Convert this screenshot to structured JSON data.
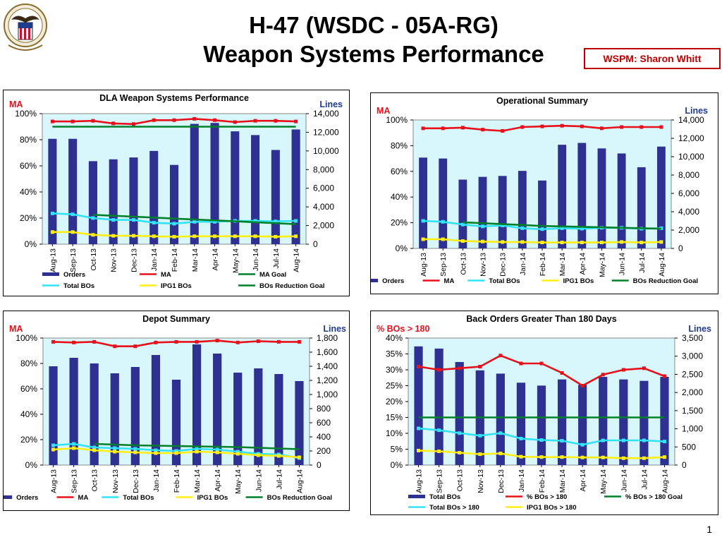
{
  "header": {
    "line1": "H-47 (WSDC - 05A-RG)",
    "line2": "Weapon Systems Performance",
    "wspm": "WSPM:  Sharon Whitt"
  },
  "page_number": "1",
  "colors": {
    "orders": "#2e3192",
    "ma": "#e8101a",
    "total_bos": "#31e3f5",
    "ipg1_bos": "#ffee11",
    "goal": "#00802b",
    "plot_bg": "#d8f7fc"
  },
  "chart_data": [
    {
      "type": "bar",
      "title": "DLA Weapon Systems Performance",
      "left_axis_label": "MA",
      "right_axis_label": "Lines",
      "categories": [
        "Aug-13",
        "Sep-13",
        "Oct-13",
        "Nov-13",
        "Dec-13",
        "Jan-14",
        "Feb-14",
        "Mar-14",
        "Apr-14",
        "May-14",
        "Jun-14",
        "Jul-14",
        "Aug-14"
      ],
      "left_ylim": [
        0,
        100
      ],
      "left_ticks": [
        "0%",
        "20%",
        "40%",
        "60%",
        "80%",
        "100%"
      ],
      "right_ylim": [
        0,
        14000
      ],
      "right_ticks": [
        "0",
        "2,000",
        "4,000",
        "6,000",
        "8,000",
        "10,000",
        "12,000",
        "14,000"
      ],
      "legend": [
        {
          "name": "Orders",
          "kind": "bar",
          "color_key": "orders"
        },
        {
          "name": "MA",
          "kind": "line",
          "color_key": "ma"
        },
        {
          "name": "MA Goal",
          "kind": "line",
          "color_key": "goal"
        },
        {
          "name": "Total BOs",
          "kind": "line",
          "color_key": "total_bos"
        },
        {
          "name": "IPG1 BOs",
          "kind": "line",
          "color_key": "ipg1_bos"
        },
        {
          "name": "BOs Reduction Goal",
          "kind": "line",
          "color_key": "goal"
        }
      ],
      "legend_layout": "grid3",
      "series": [
        {
          "name": "Orders",
          "kind": "bar",
          "axis": "right",
          "color_key": "orders",
          "values": [
            11300,
            11300,
            8900,
            9100,
            9300,
            10000,
            8500,
            12900,
            13000,
            12100,
            11700,
            10100,
            12300
          ]
        },
        {
          "name": "MA",
          "kind": "line",
          "axis": "left",
          "color_key": "ma",
          "marker": true,
          "values": [
            94,
            94,
            94.5,
            92.5,
            92,
            95,
            95,
            96,
            95,
            93.5,
            94.5,
            94.5,
            94
          ]
        },
        {
          "name": "MA Goal",
          "kind": "line",
          "axis": "left",
          "color_key": "goal",
          "marker": false,
          "values": [
            90,
            90,
            90,
            90,
            90,
            90,
            90,
            90,
            90,
            90,
            90,
            90,
            90
          ]
        },
        {
          "name": "Total BOs",
          "kind": "line",
          "axis": "right",
          "color_key": "total_bos",
          "marker": true,
          "values": [
            3300,
            3200,
            2800,
            2600,
            2600,
            2300,
            2200,
            2400,
            2400,
            2500,
            2500,
            2450,
            2500
          ]
        },
        {
          "name": "IPG1 BOs",
          "kind": "line",
          "axis": "right",
          "color_key": "ipg1_bos",
          "marker": true,
          "values": [
            1300,
            1300,
            1000,
            900,
            900,
            850,
            800,
            850,
            850,
            850,
            850,
            800,
            850
          ]
        },
        {
          "name": "BOs Reduction Goal",
          "kind": "line",
          "axis": "right",
          "color_key": "goal",
          "marker": false,
          "start": 2,
          "values": [
            null,
            null,
            3150,
            3050,
            2950,
            2850,
            2750,
            2650,
            2550,
            2450,
            2350,
            2250,
            2150
          ]
        }
      ]
    },
    {
      "type": "bar",
      "title": "Operational Summary",
      "left_axis_label": "MA",
      "right_axis_label": "Lines",
      "categories": [
        "Aug-13",
        "Sep-13",
        "Oct-13",
        "Nov-13",
        "Dec-13",
        "Jan-14",
        "Feb-14",
        "Mar-14",
        "Apr-14",
        "May-14",
        "Jun-14",
        "Jul-14",
        "Aug-14"
      ],
      "left_ylim": [
        0,
        100
      ],
      "left_ticks": [
        "0%",
        "20%",
        "40%",
        "60%",
        "80%",
        "100%"
      ],
      "right_ylim": [
        0,
        14000
      ],
      "right_ticks": [
        "0",
        "2,000",
        "4,000",
        "6,000",
        "8,000",
        "10,000",
        "12,000",
        "14,000"
      ],
      "legend": [
        {
          "name": "Orders",
          "kind": "bar",
          "color_key": "orders"
        },
        {
          "name": "MA",
          "kind": "line",
          "color_key": "ma"
        },
        {
          "name": "Total BOs",
          "kind": "line",
          "color_key": "total_bos"
        },
        {
          "name": "IPG1 BOs",
          "kind": "line",
          "color_key": "ipg1_bos"
        },
        {
          "name": "BOs Reduction Goal",
          "kind": "line",
          "color_key": "goal"
        }
      ],
      "legend_layout": "row",
      "series": [
        {
          "name": "Orders",
          "kind": "bar",
          "axis": "right",
          "color_key": "orders",
          "values": [
            9900,
            9800,
            7500,
            7800,
            7900,
            8450,
            7400,
            11300,
            11500,
            10900,
            10350,
            8850,
            11100
          ]
        },
        {
          "name": "MA",
          "kind": "line",
          "axis": "left",
          "color_key": "ma",
          "marker": true,
          "values": [
            93.5,
            93.5,
            94,
            92.5,
            91.5,
            94.5,
            95,
            95.5,
            95,
            93.5,
            94.5,
            94.5,
            94.5
          ]
        },
        {
          "name": "Total BOs",
          "kind": "line",
          "axis": "right",
          "color_key": "total_bos",
          "marker": true,
          "values": [
            3000,
            2900,
            2600,
            2400,
            2500,
            2200,
            2100,
            2200,
            2150,
            2250,
            2250,
            2150,
            2200
          ]
        },
        {
          "name": "IPG1 BOs",
          "kind": "line",
          "axis": "right",
          "color_key": "ipg1_bos",
          "marker": true,
          "values": [
            1000,
            1000,
            800,
            750,
            700,
            700,
            650,
            650,
            650,
            650,
            700,
            650,
            700
          ]
        },
        {
          "name": "BOs Reduction Goal",
          "kind": "line",
          "axis": "right",
          "color_key": "goal",
          "marker": false,
          "start": 2,
          "values": [
            null,
            null,
            2850,
            2750,
            2650,
            2550,
            2450,
            2400,
            2350,
            2300,
            2250,
            2200,
            2150
          ]
        }
      ]
    },
    {
      "type": "bar",
      "title": "Depot Summary",
      "left_axis_label": "MA",
      "right_axis_label": "Lines",
      "categories": [
        "Aug-13",
        "Sep-13",
        "Oct-13",
        "Nov-13",
        "Dec-13",
        "Jan-14",
        "Feb-14",
        "Mar-14",
        "Apr-14",
        "May-14",
        "Jun-14",
        "Jul-14",
        "Aug-14"
      ],
      "left_ylim": [
        0,
        100
      ],
      "left_ticks": [
        "0%",
        "20%",
        "40%",
        "60%",
        "80%",
        "100%"
      ],
      "right_ylim": [
        0,
        1800
      ],
      "right_ticks": [
        "0",
        "200",
        "400",
        "600",
        "800",
        "1,000",
        "1,200",
        "1,400",
        "1,600",
        "1,800"
      ],
      "legend": [
        {
          "name": "Orders",
          "kind": "bar",
          "color_key": "orders"
        },
        {
          "name": "MA",
          "kind": "line",
          "color_key": "ma"
        },
        {
          "name": "Total BOs",
          "kind": "line",
          "color_key": "total_bos"
        },
        {
          "name": "IPG1 BOs",
          "kind": "line",
          "color_key": "ipg1_bos"
        },
        {
          "name": "BOs Reduction Goal",
          "kind": "line",
          "color_key": "goal"
        }
      ],
      "legend_layout": "row",
      "series": [
        {
          "name": "Orders",
          "kind": "bar",
          "axis": "right",
          "color_key": "orders",
          "values": [
            1400,
            1520,
            1440,
            1300,
            1390,
            1560,
            1210,
            1710,
            1580,
            1310,
            1370,
            1290,
            1190
          ]
        },
        {
          "name": "MA",
          "kind": "line",
          "axis": "left",
          "color_key": "ma",
          "marker": true,
          "values": [
            97,
            96.5,
            97,
            93.5,
            93.5,
            96.5,
            97,
            97,
            98,
            96.5,
            97.5,
            97,
            97
          ]
        },
        {
          "name": "Total BOs",
          "kind": "line",
          "axis": "right",
          "color_key": "total_bos",
          "marker": true,
          "values": [
            280,
            300,
            250,
            240,
            230,
            210,
            200,
            230,
            220,
            190,
            160,
            150,
            100
          ]
        },
        {
          "name": "IPG1 BOs",
          "kind": "line",
          "axis": "right",
          "color_key": "ipg1_bos",
          "marker": true,
          "values": [
            220,
            240,
            210,
            190,
            180,
            170,
            170,
            190,
            180,
            160,
            140,
            130,
            110
          ]
        },
        {
          "name": "BOs Reduction Goal",
          "kind": "line",
          "axis": "right",
          "color_key": "goal",
          "marker": false,
          "start": 2,
          "values": [
            null,
            null,
            300,
            290,
            280,
            275,
            270,
            265,
            260,
            255,
            245,
            235,
            225
          ]
        }
      ]
    },
    {
      "type": "bar",
      "title": "Back Orders Greater Than 180 Days",
      "left_axis_label": "% BOs > 180",
      "right_axis_label": "Lines",
      "categories": [
        "Aug-13",
        "Sep-13",
        "Oct-13",
        "Nov-13",
        "Dec-13",
        "Jan-14",
        "Feb-14",
        "Mar-14",
        "Apr-14",
        "May-14",
        "Jun-14",
        "Jul-14",
        "Aug-14"
      ],
      "left_ylim": [
        0,
        40
      ],
      "left_ticks": [
        "0%",
        "5%",
        "10%",
        "15%",
        "20%",
        "25%",
        "30%",
        "35%",
        "40%"
      ],
      "right_ylim": [
        0,
        3500
      ],
      "right_ticks": [
        "0",
        "500",
        "1,000",
        "1,500",
        "2,000",
        "2,500",
        "3,000",
        "3,500"
      ],
      "legend": [
        {
          "name": "Total BOs",
          "kind": "bar",
          "color_key": "orders"
        },
        {
          "name": "% BOs > 180",
          "kind": "line",
          "color_key": "ma"
        },
        {
          "name": "% BOs > 180 Goal",
          "kind": "line",
          "color_key": "goal"
        },
        {
          "name": "Total BOs > 180",
          "kind": "line",
          "color_key": "total_bos"
        },
        {
          "name": "IPG1 BOs > 180",
          "kind": "line",
          "color_key": "ipg1_bos"
        }
      ],
      "legend_layout": "grid3",
      "series": [
        {
          "name": "Total BOs",
          "kind": "bar",
          "axis": "right",
          "color_key": "orders",
          "values": [
            3270,
            3210,
            2840,
            2610,
            2520,
            2270,
            2190,
            2360,
            2210,
            2430,
            2360,
            2320,
            2430
          ]
        },
        {
          "name": "% BOs > 180",
          "kind": "line",
          "axis": "left",
          "color_key": "ma",
          "marker": true,
          "values": [
            31,
            30,
            30.5,
            31,
            34.5,
            32,
            32,
            29,
            25,
            28.5,
            30,
            30.5,
            28
          ]
        },
        {
          "name": "% BOs > 180 Goal",
          "kind": "line",
          "axis": "left",
          "color_key": "goal",
          "marker": false,
          "values": [
            15,
            15,
            15,
            15,
            15,
            15,
            15,
            15,
            15,
            15,
            15,
            15,
            15
          ]
        },
        {
          "name": "Total BOs > 180",
          "kind": "line",
          "axis": "right",
          "color_key": "total_bos",
          "marker": true,
          "values": [
            1010,
            960,
            880,
            810,
            880,
            730,
            690,
            670,
            560,
            680,
            680,
            680,
            650
          ]
        },
        {
          "name": "IPG1 BOs > 180",
          "kind": "line",
          "axis": "right",
          "color_key": "ipg1_bos",
          "marker": true,
          "values": [
            400,
            380,
            340,
            300,
            320,
            230,
            220,
            220,
            210,
            210,
            190,
            190,
            220
          ]
        }
      ]
    }
  ]
}
